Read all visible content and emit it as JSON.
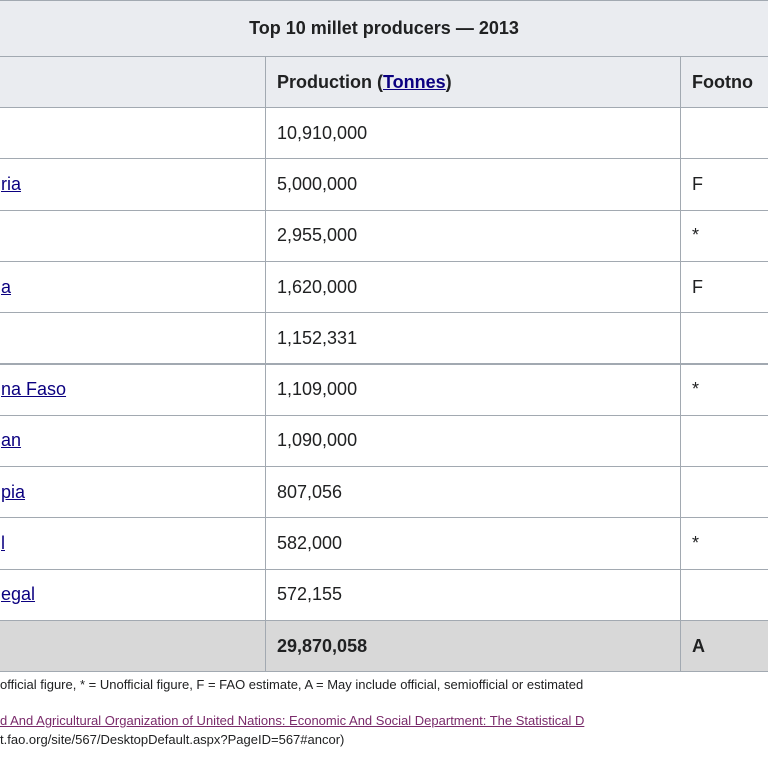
{
  "table": {
    "title": "Top 10 millet producers — 2013",
    "header": {
      "production_before": "Production (",
      "production_link": "Tonnes",
      "production_after": ")",
      "footnote": "Footno"
    },
    "rows": [
      [
        null,
        "10,910,000",
        null
      ],
      [
        "ria",
        "5,000,000",
        "F"
      ],
      [
        null,
        "2,955,000",
        "*"
      ],
      [
        "a",
        "1,620,000",
        "F"
      ],
      [
        null,
        "1,152,331",
        null
      ],
      [
        "na Faso",
        "1,109,000",
        "*"
      ],
      [
        "an",
        "1,090,000",
        null
      ],
      [
        "pia",
        "807,056",
        null
      ],
      [
        "l",
        "582,000",
        "*"
      ],
      [
        "egal",
        "572,155",
        null
      ]
    ],
    "total": [
      null,
      "29,870,058",
      "A"
    ]
  },
  "notes": {
    "legend": "official figure, * = Unofficial figure, F = FAO estimate, A = May include official, semiofficial or estimated",
    "source_line1": "d And Agricultural Organization of United Nations: Economic And Social Department: The Statistical D",
    "source_line2": "t.fao.org/site/567/DesktopDefault.aspx?PageID=567#ancor)"
  }
}
